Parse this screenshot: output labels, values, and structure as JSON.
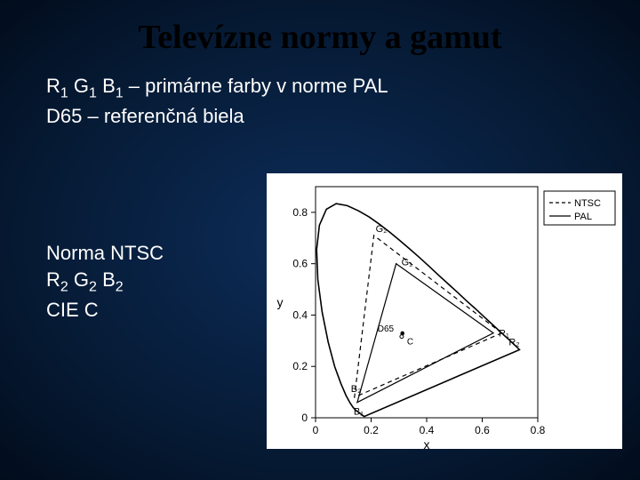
{
  "title": "Televízne normy a gamut",
  "subtitle_line1a": "R",
  "subtitle_line1b": "G",
  "subtitle_line1c": "B",
  "subtitle_sub1": "1",
  "subtitle_line1_rest": " – primárne farby v norme PAL",
  "subtitle_line2": "D65 – referenčná biela",
  "left_line1": "Norma NTSC",
  "left_line2a": "R",
  "left_line2b": "G",
  "left_line2c": "B",
  "left_sub2": "2",
  "left_line3": "CIE C",
  "chart": {
    "background": "#ffffff",
    "axis_color": "#000000",
    "tick_fontsize": 12,
    "label_fontsize": 14,
    "xlabel": "x",
    "ylabel": "y",
    "xticks": [
      "0",
      "0.2",
      "0.4",
      "0.6",
      "0.8"
    ],
    "yticks": [
      "0",
      "0.2",
      "0.4",
      "0.6",
      "0.8"
    ],
    "xlim": [
      0,
      0.8
    ],
    "ylim": [
      0,
      0.9
    ],
    "legend": {
      "ntsc": "NTSC",
      "pal": "PAL",
      "ntsc_dash": "4 3",
      "pal_solid": true
    },
    "spectral_locus": [
      [
        0.175,
        0.005
      ],
      [
        0.1565,
        0.02
      ],
      [
        0.144,
        0.03
      ],
      [
        0.1355,
        0.04
      ],
      [
        0.1241,
        0.058
      ],
      [
        0.1096,
        0.087
      ],
      [
        0.0913,
        0.133
      ],
      [
        0.0687,
        0.2
      ],
      [
        0.0454,
        0.295
      ],
      [
        0.0235,
        0.413
      ],
      [
        0.0082,
        0.538
      ],
      [
        0.0039,
        0.655
      ],
      [
        0.0139,
        0.75
      ],
      [
        0.0389,
        0.812
      ],
      [
        0.0743,
        0.834
      ],
      [
        0.1142,
        0.826
      ],
      [
        0.1547,
        0.806
      ],
      [
        0.1929,
        0.782
      ],
      [
        0.2296,
        0.754
      ],
      [
        0.2658,
        0.724
      ],
      [
        0.3016,
        0.692
      ],
      [
        0.3373,
        0.659
      ],
      [
        0.3731,
        0.625
      ],
      [
        0.4087,
        0.59
      ],
      [
        0.4441,
        0.554
      ],
      [
        0.4788,
        0.52
      ],
      [
        0.5125,
        0.487
      ],
      [
        0.5448,
        0.454
      ],
      [
        0.5752,
        0.425
      ],
      [
        0.6029,
        0.397
      ],
      [
        0.627,
        0.373
      ],
      [
        0.6482,
        0.352
      ],
      [
        0.6658,
        0.334
      ],
      [
        0.6801,
        0.32
      ],
      [
        0.6915,
        0.309
      ],
      [
        0.7006,
        0.3
      ],
      [
        0.714,
        0.286
      ],
      [
        0.726,
        0.274
      ],
      [
        0.734,
        0.265
      ]
    ],
    "pal_triangle": {
      "R": [
        0.64,
        0.33
      ],
      "G": [
        0.29,
        0.6
      ],
      "B": [
        0.15,
        0.06
      ],
      "label_R": "R₁",
      "label_G": "G₁",
      "label_B": "B₁",
      "line_color": "#000000",
      "line_dash": "none"
    },
    "ntsc_triangle": {
      "R": [
        0.67,
        0.33
      ],
      "G": [
        0.21,
        0.71
      ],
      "B": [
        0.14,
        0.08
      ],
      "label_R": "R₂",
      "label_G": "G₂",
      "label_B": "B₂",
      "line_color": "#000000",
      "line_dash": "5 4"
    },
    "whitepoints": {
      "D65": [
        0.3127,
        0.329
      ],
      "C": [
        0.3101,
        0.3162
      ],
      "label_D65": "D65",
      "label_C": "C"
    }
  }
}
